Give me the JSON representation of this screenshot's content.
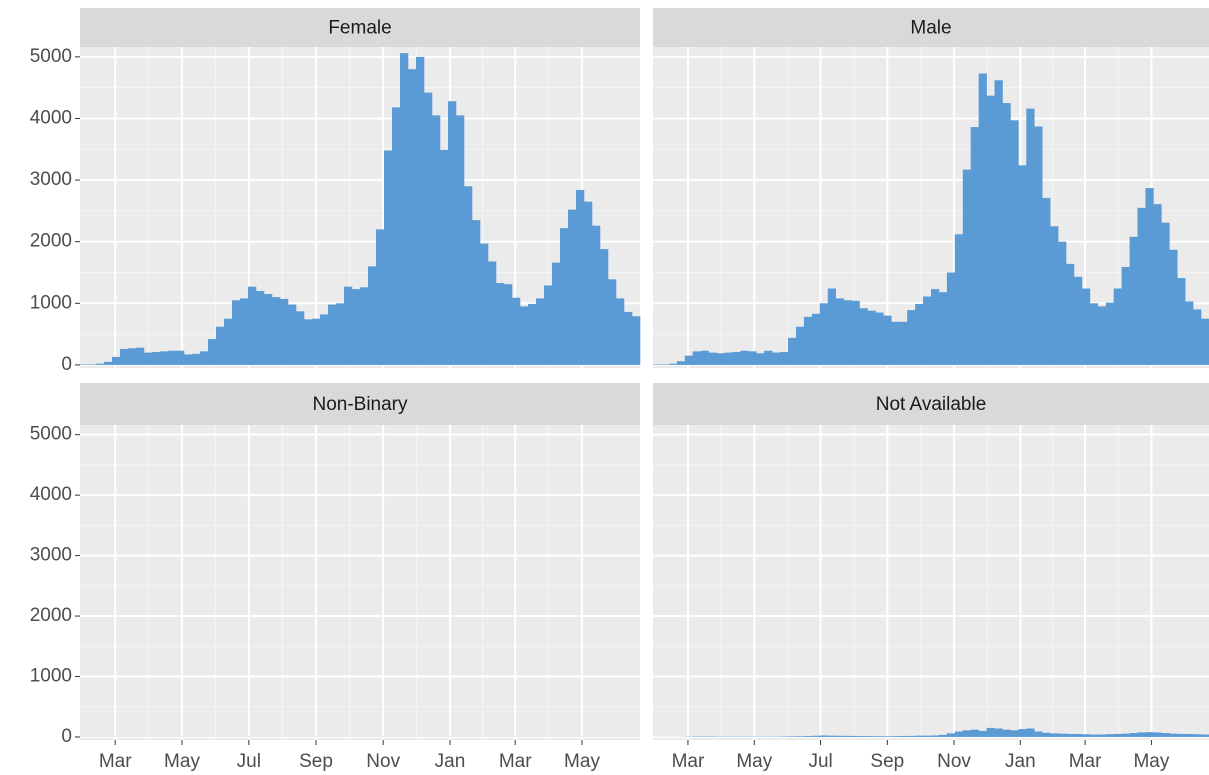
{
  "chart_data": [
    {
      "type": "bar",
      "title": "Female",
      "color": "#5b9bd5",
      "values": [
        10,
        10,
        20,
        50,
        130,
        260,
        270,
        280,
        200,
        210,
        220,
        230,
        230,
        170,
        180,
        220,
        420,
        620,
        750,
        1050,
        1080,
        1270,
        1200,
        1150,
        1100,
        1070,
        980,
        870,
        740,
        750,
        820,
        980,
        1000,
        1270,
        1230,
        1260,
        1600,
        2200,
        3480,
        4180,
        5060,
        4800,
        5000,
        4420,
        4050,
        3490,
        4280,
        4050,
        2900,
        2350,
        1970,
        1680,
        1330,
        1310,
        1090,
        950,
        990,
        1080,
        1290,
        1660,
        2220,
        2520,
        2840,
        2650,
        2260,
        1880,
        1390,
        1080,
        860,
        790
      ],
      "xlim": [
        0,
        70
      ],
      "xticks": [
        {
          "value": 4.4,
          "label": "Mar"
        },
        {
          "value": 12.75,
          "label": "May"
        },
        {
          "value": 21.1,
          "label": "Jul"
        },
        {
          "value": 29.5,
          "label": "Sep"
        },
        {
          "value": 37.9,
          "label": "Nov"
        },
        {
          "value": 46.25,
          "label": "Jan"
        },
        {
          "value": 54.4,
          "label": "Mar"
        },
        {
          "value": 62.75,
          "label": "May"
        }
      ],
      "ylim": [
        -50,
        5160
      ],
      "yticks": [
        0,
        1000,
        2000,
        3000,
        4000,
        5000
      ]
    },
    {
      "type": "bar",
      "title": "Male",
      "color": "#5b9bd5",
      "values": [
        10,
        10,
        20,
        60,
        150,
        220,
        230,
        200,
        190,
        200,
        210,
        230,
        220,
        190,
        230,
        200,
        210,
        440,
        620,
        780,
        830,
        1000,
        1240,
        1080,
        1050,
        1040,
        920,
        880,
        850,
        800,
        700,
        700,
        890,
        990,
        1110,
        1230,
        1180,
        1500,
        2120,
        3170,
        3860,
        4730,
        4370,
        4620,
        4250,
        3970,
        3240,
        4160,
        3870,
        2710,
        2250,
        2000,
        1640,
        1430,
        1240,
        1000,
        950,
        1010,
        1240,
        1590,
        2080,
        2550,
        2870,
        2610,
        2310,
        1870,
        1410,
        1030,
        900,
        750
      ],
      "xlim": [
        0,
        70
      ],
      "xticks": [
        {
          "value": 4.4,
          "label": "Mar"
        },
        {
          "value": 12.75,
          "label": "May"
        },
        {
          "value": 21.1,
          "label": "Jul"
        },
        {
          "value": 29.5,
          "label": "Sep"
        },
        {
          "value": 37.9,
          "label": "Nov"
        },
        {
          "value": 46.25,
          "label": "Jan"
        },
        {
          "value": 54.4,
          "label": "Mar"
        },
        {
          "value": 62.75,
          "label": "May"
        }
      ],
      "ylim": [
        -50,
        5160
      ],
      "yticks": [
        0,
        1000,
        2000,
        3000,
        4000,
        5000
      ]
    },
    {
      "type": "bar",
      "title": "Non-Binary",
      "color": "#5b9bd5",
      "values": [
        3,
        3,
        3,
        3,
        3,
        3,
        3,
        3,
        3,
        3,
        3,
        3,
        3,
        3,
        3,
        3,
        3,
        3,
        3,
        3,
        3,
        3,
        3,
        3,
        3,
        3,
        3,
        3,
        3,
        3,
        3,
        3,
        3,
        3,
        3,
        3,
        3,
        3,
        3,
        3,
        3,
        3,
        3,
        3,
        3,
        3,
        3,
        3,
        3,
        3,
        3,
        3,
        3,
        3,
        3,
        3,
        3,
        3,
        3,
        3,
        3,
        3,
        3,
        3,
        3,
        3,
        3,
        3,
        3,
        3
      ],
      "xlim": [
        0,
        70
      ],
      "xticks": [
        {
          "value": 4.4,
          "label": "Mar"
        },
        {
          "value": 12.75,
          "label": "May"
        },
        {
          "value": 21.1,
          "label": "Jul"
        },
        {
          "value": 29.5,
          "label": "Sep"
        },
        {
          "value": 37.9,
          "label": "Nov"
        },
        {
          "value": 46.25,
          "label": "Jan"
        },
        {
          "value": 54.4,
          "label": "Mar"
        },
        {
          "value": 62.75,
          "label": "May"
        }
      ],
      "ylim": [
        -50,
        5160
      ],
      "yticks": [
        0,
        1000,
        2000,
        3000,
        4000,
        5000
      ]
    },
    {
      "type": "bar",
      "title": "Not Available",
      "color": "#5b9bd5",
      "values": [
        2,
        2,
        2,
        3,
        5,
        8,
        8,
        8,
        6,
        6,
        6,
        6,
        6,
        5,
        5,
        6,
        8,
        10,
        12,
        15,
        20,
        25,
        22,
        20,
        18,
        17,
        15,
        14,
        13,
        12,
        14,
        16,
        18,
        22,
        22,
        25,
        35,
        60,
        90,
        110,
        120,
        100,
        150,
        140,
        120,
        110,
        130,
        140,
        90,
        70,
        60,
        55,
        50,
        50,
        45,
        40,
        40,
        45,
        50,
        55,
        65,
        75,
        80,
        75,
        65,
        55,
        50,
        50,
        45,
        40
      ],
      "xlim": [
        0,
        70
      ],
      "xticks": [
        {
          "value": 4.4,
          "label": "Mar"
        },
        {
          "value": 12.75,
          "label": "May"
        },
        {
          "value": 21.1,
          "label": "Jul"
        },
        {
          "value": 29.5,
          "label": "Sep"
        },
        {
          "value": 37.9,
          "label": "Nov"
        },
        {
          "value": 46.25,
          "label": "Jan"
        },
        {
          "value": 54.4,
          "label": "Mar"
        },
        {
          "value": 62.75,
          "label": "May"
        }
      ],
      "ylim": [
        -50,
        5160
      ],
      "yticks": [
        0,
        1000,
        2000,
        3000,
        4000,
        5000
      ]
    }
  ]
}
